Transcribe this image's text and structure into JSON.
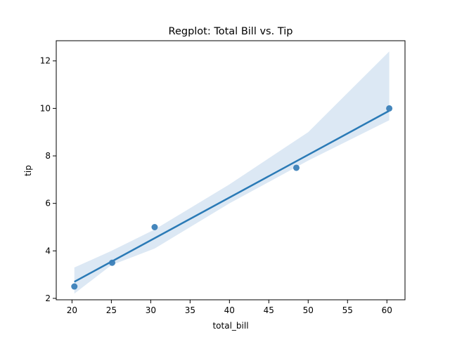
{
  "chart_data": {
    "type": "scatter",
    "title": "Regplot: Total Bill vs. Tip",
    "xlabel": "total_bill",
    "ylabel": "tip",
    "xlim": [
      18.0,
      62.3
    ],
    "ylim": [
      1.94,
      12.85
    ],
    "x_ticks": [
      20,
      25,
      30,
      35,
      40,
      45,
      50,
      55,
      60
    ],
    "y_ticks": [
      2,
      4,
      6,
      8,
      10,
      12
    ],
    "grid": false,
    "colors": {
      "points": "#3a80b8",
      "line": "#2a7ab6",
      "band": "#dce8f4"
    },
    "points": [
      {
        "x": 20.3,
        "y": 2.5
      },
      {
        "x": 25.1,
        "y": 3.5
      },
      {
        "x": 30.5,
        "y": 5.0
      },
      {
        "x": 48.5,
        "y": 7.5
      },
      {
        "x": 60.3,
        "y": 10.0
      }
    ],
    "regression_line": [
      {
        "x": 20.3,
        "y": 2.7
      },
      {
        "x": 60.3,
        "y": 9.9
      }
    ],
    "confidence_band": {
      "upper": [
        {
          "x": 20.3,
          "y": 3.3
        },
        {
          "x": 25.0,
          "y": 4.0
        },
        {
          "x": 30.5,
          "y": 4.9
        },
        {
          "x": 40.0,
          "y": 6.8
        },
        {
          "x": 50.0,
          "y": 9.0
        },
        {
          "x": 60.3,
          "y": 12.4
        }
      ],
      "lower": [
        {
          "x": 20.3,
          "y": 2.2
        },
        {
          "x": 25.0,
          "y": 3.4
        },
        {
          "x": 30.5,
          "y": 4.1
        },
        {
          "x": 40.0,
          "y": 6.0
        },
        {
          "x": 50.0,
          "y": 7.8
        },
        {
          "x": 60.3,
          "y": 9.5
        }
      ]
    }
  }
}
